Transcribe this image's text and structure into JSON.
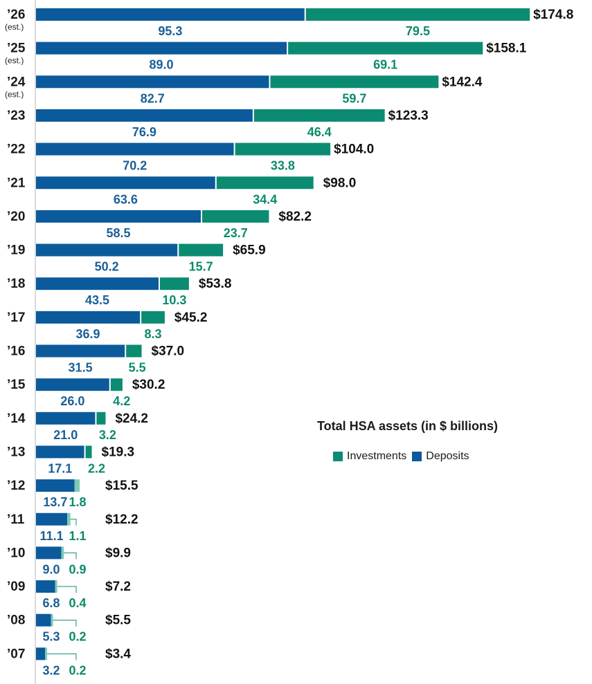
{
  "chart_data": {
    "type": "bar",
    "orientation": "horizontal",
    "stacked": true,
    "title": "Total HSA assets (in $ billions)",
    "categories": [
      "’26",
      "’25",
      "’24",
      "’23",
      "’22",
      "’21",
      "’20",
      "’19",
      "’18",
      "’17",
      "’16",
      "’15",
      "’14",
      "’13",
      "’12",
      "’11",
      "’10",
      "’09",
      "’08",
      "’07"
    ],
    "est_note": "(est.)",
    "estimated": [
      true,
      true,
      true,
      false,
      false,
      false,
      false,
      false,
      false,
      false,
      false,
      false,
      false,
      false,
      false,
      false,
      false,
      false,
      false,
      false
    ],
    "series": [
      {
        "name": "Deposits",
        "color": "#0b5a9c",
        "values": [
          95.3,
          89.0,
          82.7,
          76.9,
          70.2,
          63.6,
          58.5,
          50.2,
          43.5,
          36.9,
          31.5,
          26.0,
          21.0,
          17.1,
          13.7,
          11.1,
          9.0,
          6.8,
          5.3,
          3.2
        ]
      },
      {
        "name": "Investments",
        "color": "#0b8c72",
        "values": [
          79.5,
          69.1,
          59.7,
          46.4,
          33.8,
          34.4,
          23.7,
          15.7,
          10.3,
          8.3,
          5.5,
          4.2,
          3.2,
          2.2,
          1.8,
          1.1,
          0.9,
          0.4,
          0.2,
          0.2
        ]
      }
    ],
    "series_labels": {
      "deposits": [
        "95.3",
        "89.0",
        "82.7",
        "76.9",
        "70.2",
        "63.6",
        "58.5",
        "50.2",
        "43.5",
        "36.9",
        "31.5",
        "26.0",
        "21.0",
        "17.1",
        "13.7",
        "11.1",
        "9.0",
        "6.8",
        "5.3",
        "3.2"
      ],
      "investments": [
        "79.5",
        "69.1",
        "59.7",
        "46.4",
        "33.8",
        "34.4",
        "23.7",
        "15.7",
        "10.3",
        "8.3",
        "5.5",
        "4.2",
        "3.2",
        "2.2",
        "1.8",
        "1.1",
        "0.9",
        "0.4",
        "0.2",
        "0.2"
      ]
    },
    "totals": [
      "$174.8",
      "$158.1",
      "$142.4",
      "$123.3",
      "$104.0",
      "$98.0",
      "$82.2",
      "$65.9",
      "$53.8",
      "$45.2",
      "$37.0",
      "$30.2",
      "$24.2",
      "$19.3",
      "$15.5",
      "$12.2",
      "$9.9",
      "$7.2",
      "$5.5",
      "$3.4"
    ],
    "legend": [
      "Investments",
      "Deposits"
    ],
    "legend_placement": "right",
    "grid": false,
    "xlim": [
      0,
      175
    ]
  },
  "colors": {
    "deposits": "#0b5a9c",
    "investments": "#0b8c72",
    "investments_light": "#7fc9b4",
    "deposit_label": "#1a5f96",
    "investment_label": "#0d8a6c"
  }
}
